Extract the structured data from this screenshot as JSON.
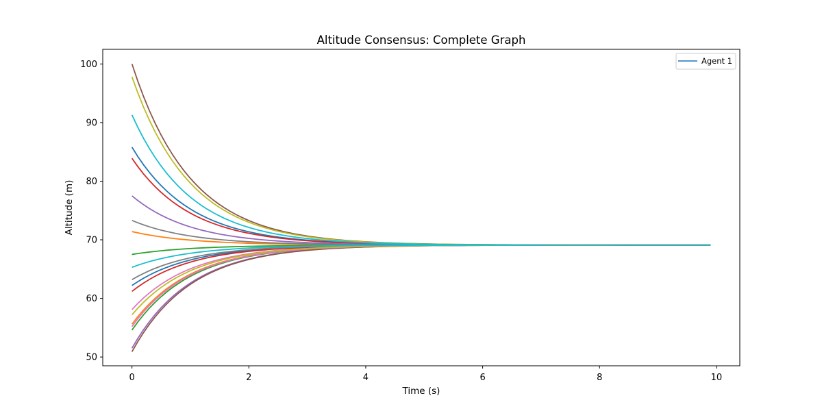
{
  "chart_data": {
    "type": "line",
    "title": "Altitude Consensus: Complete Graph",
    "xlabel": "Time (s)",
    "ylabel": "Altitude (m)",
    "xlim": [
      -0.5,
      10.4
    ],
    "ylim": [
      48.5,
      102.5
    ],
    "x_ticks": [
      0,
      2,
      4,
      6,
      8,
      10
    ],
    "y_ticks": [
      50,
      60,
      70,
      80,
      90,
      100
    ],
    "grid": false,
    "legend_placement": "top-right",
    "legend_entries": [
      "Agent 1"
    ],
    "time_range": [
      0,
      9.9
    ],
    "consensus_value": 69.1,
    "convergence_rate": 1.0,
    "series": [
      {
        "name": "Agent 1",
        "initial": 85.8,
        "color": "#1f77b4"
      },
      {
        "initial": 71.4,
        "color": "#ff7f0e"
      },
      {
        "initial": 67.5,
        "color": "#2ca02c"
      },
      {
        "initial": 83.9,
        "color": "#d62728"
      },
      {
        "initial": 77.5,
        "color": "#9467bd"
      },
      {
        "initial": 100.0,
        "color": "#8c564b"
      },
      {
        "initial": 58.1,
        "color": "#e377c2"
      },
      {
        "initial": 73.3,
        "color": "#7f7f7f"
      },
      {
        "initial": 97.8,
        "color": "#bcbd22"
      },
      {
        "initial": 91.3,
        "color": "#17becf"
      },
      {
        "initial": 62.2,
        "color": "#1f77b4"
      },
      {
        "initial": 55.6,
        "color": "#ff7f0e"
      },
      {
        "initial": 54.6,
        "color": "#2ca02c"
      },
      {
        "initial": 61.2,
        "color": "#d62728"
      },
      {
        "initial": 51.5,
        "color": "#9467bd"
      },
      {
        "initial": 50.9,
        "color": "#8c564b"
      },
      {
        "initial": 55.2,
        "color": "#e377c2"
      },
      {
        "initial": 63.2,
        "color": "#7f7f7f"
      },
      {
        "initial": 57.2,
        "color": "#bcbd22"
      },
      {
        "initial": 65.3,
        "color": "#17becf"
      }
    ]
  }
}
